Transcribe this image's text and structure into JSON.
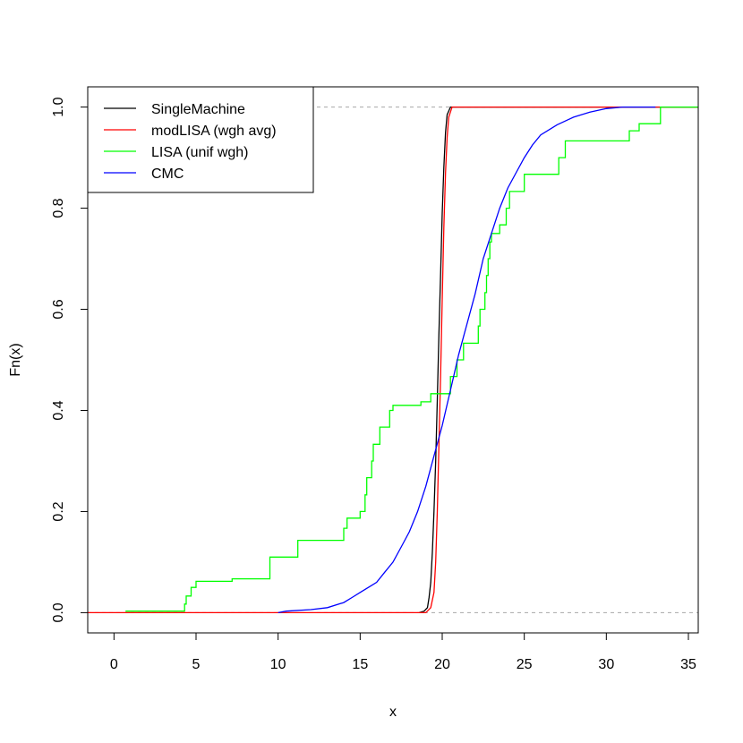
{
  "chart_data": {
    "type": "line",
    "title": "",
    "xlabel": "x",
    "ylabel": "Fn(x)",
    "xlim": [
      -1.6,
      35.6
    ],
    "ylim": [
      -0.04,
      1.04
    ],
    "x_ticks": [
      "0",
      "5",
      "10",
      "15",
      "20",
      "25",
      "30",
      "35"
    ],
    "y_ticks": [
      "0.0",
      "0.2",
      "0.4",
      "0.6",
      "0.8",
      "1.0"
    ],
    "reference_lines": [
      0,
      1
    ],
    "legend_position": "top-left",
    "series": [
      {
        "name": "SingleMachine",
        "color": "#000000",
        "step": false,
        "points": [
          [
            18.6,
            0
          ],
          [
            18.9,
            0.003
          ],
          [
            19.1,
            0.01
          ],
          [
            19.2,
            0.03
          ],
          [
            19.3,
            0.06
          ],
          [
            19.4,
            0.12
          ],
          [
            19.5,
            0.2
          ],
          [
            19.6,
            0.3
          ],
          [
            19.7,
            0.42
          ],
          [
            19.8,
            0.55
          ],
          [
            19.9,
            0.67
          ],
          [
            20.0,
            0.79
          ],
          [
            20.1,
            0.88
          ],
          [
            20.2,
            0.95
          ],
          [
            20.3,
            0.985
          ],
          [
            20.5,
            1.0
          ],
          [
            35.6,
            1.0
          ]
        ]
      },
      {
        "name": "modLISA (wgh avg)",
        "color": "#ff0000",
        "step": false,
        "points": [
          [
            -1.6,
            0
          ],
          [
            19.0,
            0
          ],
          [
            19.3,
            0.01
          ],
          [
            19.5,
            0.04
          ],
          [
            19.6,
            0.1
          ],
          [
            19.7,
            0.2
          ],
          [
            19.8,
            0.33
          ],
          [
            19.9,
            0.47
          ],
          [
            20.0,
            0.62
          ],
          [
            20.1,
            0.76
          ],
          [
            20.2,
            0.87
          ],
          [
            20.3,
            0.94
          ],
          [
            20.4,
            0.98
          ],
          [
            20.6,
            1.0
          ],
          [
            35.6,
            1.0
          ]
        ]
      },
      {
        "name": "LISA (unif wgh)",
        "color": "#00ff00",
        "step": true,
        "points": [
          [
            0.7,
            0.003
          ],
          [
            4.3,
            0.017
          ],
          [
            4.4,
            0.033
          ],
          [
            4.7,
            0.05
          ],
          [
            5.0,
            0.062
          ],
          [
            7.2,
            0.067
          ],
          [
            9.5,
            0.11
          ],
          [
            11.2,
            0.143
          ],
          [
            14.0,
            0.167
          ],
          [
            14.2,
            0.187
          ],
          [
            15.0,
            0.2
          ],
          [
            15.3,
            0.233
          ],
          [
            15.4,
            0.267
          ],
          [
            15.7,
            0.3
          ],
          [
            15.8,
            0.333
          ],
          [
            16.2,
            0.367
          ],
          [
            16.8,
            0.4
          ],
          [
            17.0,
            0.41
          ],
          [
            18.7,
            0.417
          ],
          [
            19.3,
            0.433
          ],
          [
            20.5,
            0.467
          ],
          [
            20.9,
            0.5
          ],
          [
            21.3,
            0.533
          ],
          [
            22.2,
            0.567
          ],
          [
            22.3,
            0.6
          ],
          [
            22.6,
            0.633
          ],
          [
            22.7,
            0.667
          ],
          [
            22.8,
            0.7
          ],
          [
            22.9,
            0.733
          ],
          [
            23.0,
            0.75
          ],
          [
            23.5,
            0.767
          ],
          [
            23.9,
            0.8
          ],
          [
            24.1,
            0.833
          ],
          [
            25.0,
            0.867
          ],
          [
            27.1,
            0.9
          ],
          [
            27.5,
            0.933
          ],
          [
            31.4,
            0.953
          ],
          [
            32.0,
            0.967
          ],
          [
            33.3,
            1.0
          ]
        ]
      },
      {
        "name": "CMC",
        "color": "#0000ff",
        "step": false,
        "points": [
          [
            10.0,
            0
          ],
          [
            10.5,
            0.003
          ],
          [
            12.0,
            0.006
          ],
          [
            13.0,
            0.01
          ],
          [
            14.0,
            0.02
          ],
          [
            14.5,
            0.03
          ],
          [
            15.0,
            0.04
          ],
          [
            15.5,
            0.05
          ],
          [
            16.0,
            0.06
          ],
          [
            16.5,
            0.08
          ],
          [
            17.0,
            0.1
          ],
          [
            17.5,
            0.13
          ],
          [
            18.0,
            0.16
          ],
          [
            18.5,
            0.2
          ],
          [
            19.0,
            0.25
          ],
          [
            19.5,
            0.31
          ],
          [
            20.0,
            0.37
          ],
          [
            20.5,
            0.44
          ],
          [
            21.0,
            0.51
          ],
          [
            21.5,
            0.57
          ],
          [
            22.0,
            0.63
          ],
          [
            22.5,
            0.7
          ],
          [
            23.0,
            0.75
          ],
          [
            23.5,
            0.8
          ],
          [
            24.0,
            0.84
          ],
          [
            24.5,
            0.87
          ],
          [
            25.0,
            0.9
          ],
          [
            25.5,
            0.925
          ],
          [
            26.0,
            0.945
          ],
          [
            27.0,
            0.965
          ],
          [
            28.0,
            0.98
          ],
          [
            29.0,
            0.99
          ],
          [
            30.0,
            0.997
          ],
          [
            31.0,
            1.0
          ],
          [
            33.0,
            1.0
          ]
        ]
      }
    ]
  }
}
